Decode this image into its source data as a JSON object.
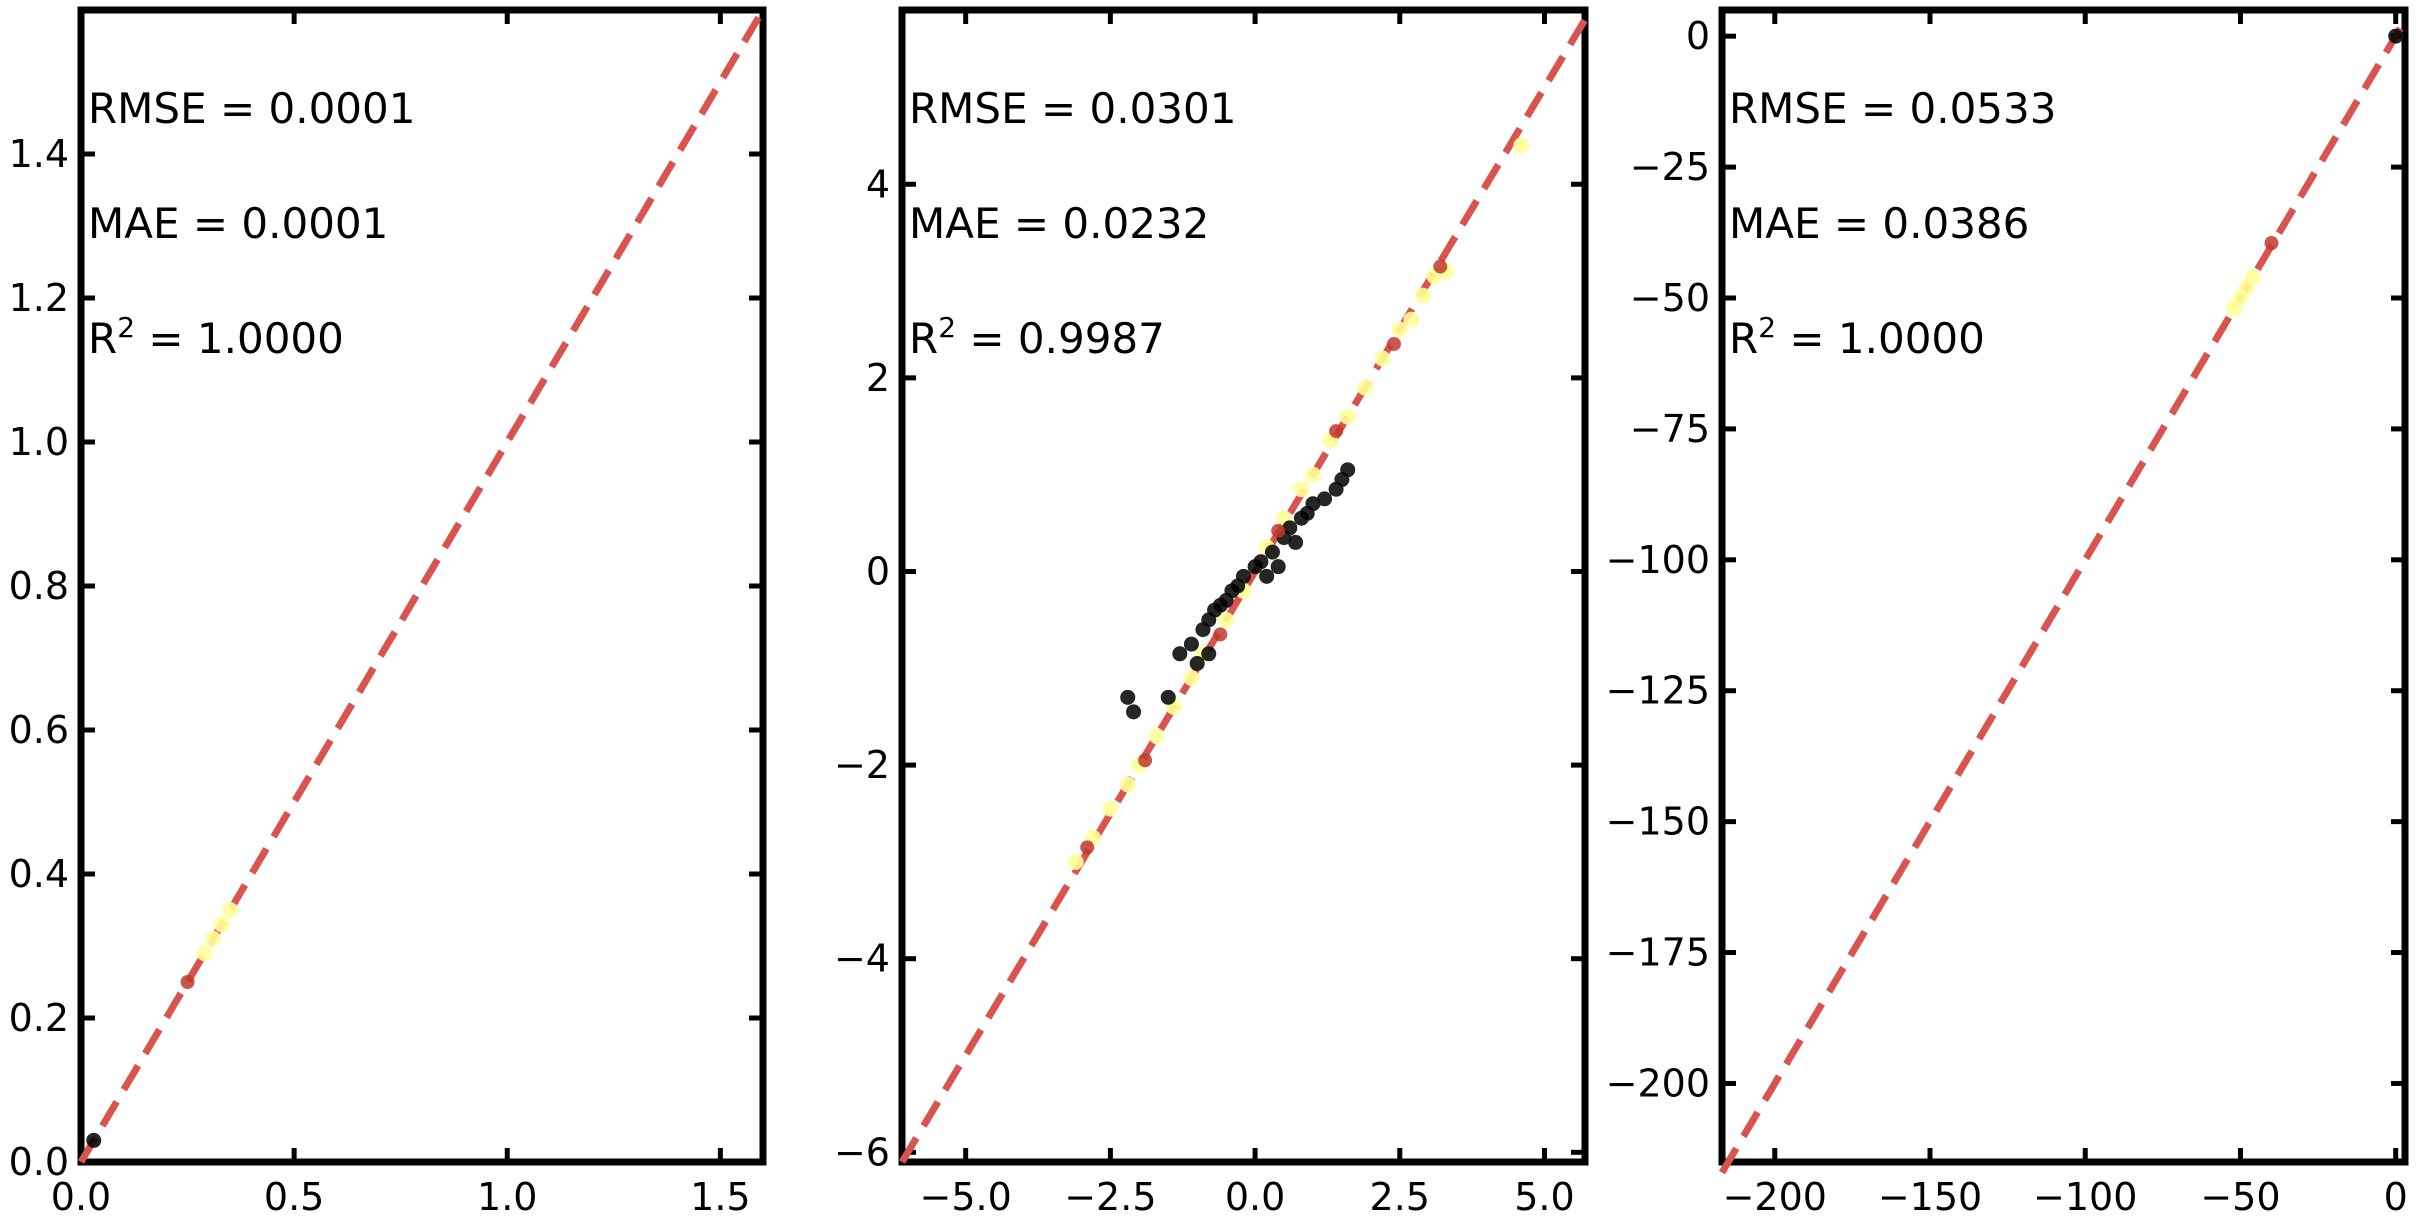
{
  "chart_data": [
    {
      "type": "scatter",
      "title": "",
      "xlabel": "",
      "ylabel": "",
      "xlim": [
        0,
        1.6
      ],
      "ylim": [
        0,
        1.6
      ],
      "x_ticks": [
        0.0,
        0.5,
        1.0,
        1.5
      ],
      "x_tick_labels": [
        "0.0",
        "0.5",
        "1.0",
        "1.5"
      ],
      "y_ticks": [
        0.0,
        0.2,
        0.4,
        0.6,
        0.8,
        1.0,
        1.2,
        1.4
      ],
      "y_tick_labels": [
        "0.0",
        "0.2",
        "0.4",
        "0.6",
        "0.8",
        "1.0",
        "1.2",
        "1.4"
      ],
      "grid": false,
      "annotations": {
        "rmse": "RMSE = 0.0001",
        "mae": "MAE = 0.0001",
        "r2_prefix": "R",
        "r2_sup": "2",
        "r2_value": " = 1.0000"
      },
      "identity_line": {
        "from": [
          0,
          0
        ],
        "to": [
          1.6,
          1.6
        ],
        "color": "#d9534f"
      },
      "series": [
        {
          "color": "#000000",
          "points": [
            [
              0.03,
              0.03
            ]
          ]
        },
        {
          "color": "#ffff99",
          "points": [
            [
              0.29,
              0.29
            ],
            [
              0.31,
              0.31
            ],
            [
              0.33,
              0.33
            ],
            [
              0.35,
              0.35
            ]
          ]
        },
        {
          "color": "#c0392b",
          "points": [
            [
              0.25,
              0.25
            ]
          ]
        }
      ]
    },
    {
      "type": "scatter",
      "title": "",
      "xlabel": "",
      "ylabel": "",
      "xlim": [
        -6.1,
        5.7
      ],
      "ylim": [
        -6.1,
        5.8
      ],
      "x_ticks": [
        -5.0,
        -2.5,
        0.0,
        2.5,
        5.0
      ],
      "x_tick_labels": [
        "−5.0",
        "−2.5",
        "0.0",
        "2.5",
        "5.0"
      ],
      "y_ticks": [
        -6,
        -4,
        -2,
        0,
        2,
        4
      ],
      "y_tick_labels": [
        "−6",
        "−4",
        "−2",
        "0",
        "2",
        "4"
      ],
      "grid": false,
      "annotations": {
        "rmse": "RMSE = 0.0301",
        "mae": "MAE = 0.0232",
        "r2_prefix": "R",
        "r2_sup": "2",
        "r2_value": " = 0.9987"
      },
      "identity_line": {
        "from": [
          -6.1,
          -6.1
        ],
        "to": [
          5.7,
          5.7
        ],
        "color": "#d9534f"
      },
      "series": [
        {
          "color": "#ffff99",
          "points": [
            [
              -3.1,
              -3.0
            ],
            [
              -2.8,
              -2.75
            ],
            [
              -2.5,
              -2.45
            ],
            [
              -2.2,
              -2.2
            ],
            [
              -2.0,
              -2.0
            ],
            [
              -1.7,
              -1.7
            ],
            [
              -1.4,
              -1.4
            ],
            [
              -1.1,
              -1.1
            ],
            [
              -0.9,
              -0.85
            ],
            [
              -0.5,
              -0.5
            ],
            [
              -0.2,
              -0.2
            ],
            [
              0.2,
              0.25
            ],
            [
              0.5,
              0.55
            ],
            [
              0.8,
              0.85
            ],
            [
              1.0,
              1.0
            ],
            [
              1.3,
              1.35
            ],
            [
              1.6,
              1.6
            ],
            [
              1.9,
              1.9
            ],
            [
              2.2,
              2.2
            ],
            [
              2.5,
              2.5
            ],
            [
              2.7,
              2.6
            ],
            [
              2.9,
              2.85
            ],
            [
              3.1,
              3.05
            ],
            [
              3.3,
              3.1
            ],
            [
              4.6,
              4.4
            ]
          ]
        },
        {
          "color": "#000000",
          "points": [
            [
              -2.2,
              -1.3
            ],
            [
              -2.1,
              -1.45
            ],
            [
              -1.3,
              -0.85
            ],
            [
              -1.1,
              -0.75
            ],
            [
              -0.9,
              -0.6
            ],
            [
              -0.8,
              -0.5
            ],
            [
              -0.7,
              -0.4
            ],
            [
              -0.6,
              -0.35
            ],
            [
              -0.5,
              -0.3
            ],
            [
              -0.4,
              -0.2
            ],
            [
              -0.3,
              -0.15
            ],
            [
              -0.2,
              -0.05
            ],
            [
              0.0,
              0.05
            ],
            [
              0.1,
              0.1
            ],
            [
              0.3,
              0.2
            ],
            [
              0.5,
              0.35
            ],
            [
              0.6,
              0.45
            ],
            [
              0.8,
              0.55
            ],
            [
              0.9,
              0.6
            ],
            [
              1.0,
              0.7
            ],
            [
              1.2,
              0.75
            ],
            [
              1.4,
              0.85
            ],
            [
              1.5,
              0.95
            ],
            [
              1.6,
              1.05
            ],
            [
              -1.0,
              -0.95
            ],
            [
              -0.8,
              -0.85
            ],
            [
              0.2,
              -0.05
            ],
            [
              0.4,
              0.05
            ],
            [
              0.7,
              0.3
            ],
            [
              -1.5,
              -1.3
            ]
          ]
        },
        {
          "color": "#c0392b",
          "points": [
            [
              -2.9,
              -2.85
            ],
            [
              -1.9,
              -1.95
            ],
            [
              -0.6,
              -0.65
            ],
            [
              0.4,
              0.42
            ],
            [
              1.4,
              1.45
            ],
            [
              2.4,
              2.35
            ],
            [
              3.2,
              3.15
            ]
          ]
        }
      ]
    },
    {
      "type": "scatter",
      "title": "",
      "xlabel": "",
      "ylabel": "",
      "xlim": [
        -217,
        3
      ],
      "ylim": [
        -215,
        5
      ],
      "x_ticks": [
        -200,
        -150,
        -100,
        -50,
        0
      ],
      "x_tick_labels": [
        "−200",
        "−150",
        "−100",
        "−50",
        "0"
      ],
      "y_ticks": [
        -200,
        -175,
        -150,
        -125,
        -100,
        -75,
        -50,
        -25,
        0
      ],
      "y_tick_labels": [
        "−200",
        "−175",
        "−150",
        "−125",
        "−100",
        "−75",
        "−50",
        "−25",
        "0"
      ],
      "grid": false,
      "annotations": {
        "rmse": "RMSE = 0.0533",
        "mae": "MAE = 0.0386",
        "r2_prefix": "R",
        "r2_sup": "2",
        "r2_value": " = 1.0000"
      },
      "identity_line": {
        "from": [
          -217,
          -217
        ],
        "to": [
          3,
          3
        ],
        "color": "#d9534f"
      },
      "series": [
        {
          "color": "#ffff99",
          "points": [
            [
              -52,
              -52
            ],
            [
              -50,
              -50
            ],
            [
              -48,
              -48
            ],
            [
              -46,
              -46
            ]
          ]
        },
        {
          "color": "#c0392b",
          "points": [
            [
              -40,
              -39.5
            ]
          ]
        },
        {
          "color": "#000000",
          "points": [
            [
              0,
              0
            ]
          ]
        }
      ]
    }
  ]
}
